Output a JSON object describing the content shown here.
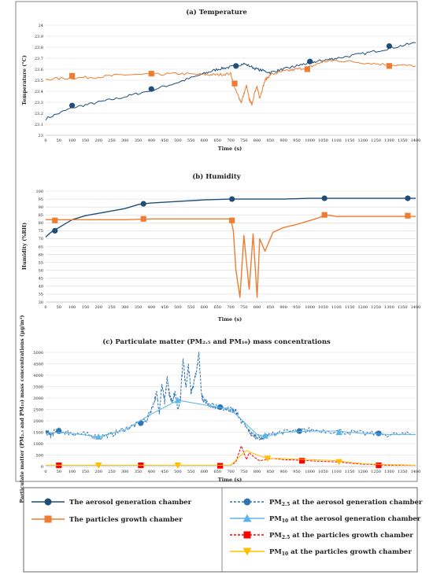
{
  "chart_data": [
    {
      "type": "line",
      "title": "(a) Temperature",
      "xlabel": "Time (s)",
      "ylabel": "Temperature (°C)",
      "xlim": [
        0,
        1400
      ],
      "ylim": [
        23,
        24
      ],
      "xticks": [
        0,
        50,
        100,
        150,
        200,
        250,
        300,
        350,
        400,
        450,
        500,
        550,
        600,
        650,
        700,
        750,
        800,
        850,
        900,
        950,
        1000,
        1050,
        1100,
        1150,
        1200,
        1250,
        1300,
        1350,
        1400
      ],
      "yticks": [
        23,
        23.1,
        23.2,
        23.3,
        23.4,
        23.5,
        23.6,
        23.7,
        23.8,
        23.9,
        24
      ],
      "ytick_labels": [
        "23",
        "23.1",
        "23.2",
        "23.3",
        "23.4",
        "23.5",
        "23.6",
        "23.7",
        "23.8",
        "23.9",
        "24"
      ],
      "grid": "horizontal",
      "series": [
        {
          "name": "The aerosol generation chamber",
          "color": "#1f4e79",
          "marker": "circle",
          "x": [
            0,
            100,
            200,
            300,
            400,
            500,
            600,
            650,
            700,
            750,
            800,
            850,
            900,
            950,
            1000,
            1050,
            1100,
            1200,
            1300,
            1400
          ],
          "y": [
            23.15,
            23.25,
            23.3,
            23.35,
            23.41,
            23.48,
            23.56,
            23.6,
            23.62,
            23.65,
            23.6,
            23.57,
            23.6,
            23.63,
            23.66,
            23.68,
            23.7,
            23.74,
            23.79,
            23.84
          ],
          "marker_x": [
            100,
            400,
            720,
            1000,
            1300
          ],
          "marker_y": [
            23.27,
            23.42,
            23.63,
            23.67,
            23.81
          ]
        },
        {
          "name": "The particles growth chamber",
          "color": "#ed7d31",
          "marker": "square",
          "x": [
            0,
            100,
            200,
            300,
            400,
            500,
            600,
            650,
            700,
            720,
            740,
            760,
            770,
            780,
            790,
            800,
            810,
            830,
            850,
            900,
            950,
            1000,
            1050,
            1100,
            1200,
            1300,
            1400
          ],
          "y": [
            23.51,
            23.52,
            23.53,
            23.55,
            23.55,
            23.56,
            23.55,
            23.55,
            23.56,
            23.4,
            23.3,
            23.45,
            23.33,
            23.28,
            23.38,
            23.44,
            23.34,
            23.5,
            23.55,
            23.58,
            23.6,
            23.62,
            23.67,
            23.68,
            23.66,
            23.64,
            23.63
          ],
          "marker_x": [
            100,
            400,
            715,
            990,
            1300
          ],
          "marker_y": [
            23.54,
            23.56,
            23.47,
            23.6,
            23.63
          ]
        }
      ]
    },
    {
      "type": "line",
      "title": "(b) Humidity",
      "xlabel": "Time (s)",
      "ylabel": "Humidity (%RH)",
      "xlim": [
        0,
        1400
      ],
      "ylim": [
        30,
        100
      ],
      "xticks": [
        0,
        50,
        100,
        150,
        200,
        250,
        300,
        350,
        400,
        450,
        500,
        550,
        600,
        650,
        700,
        750,
        800,
        850,
        900,
        950,
        1000,
        1050,
        1100,
        1150,
        1200,
        1250,
        1300,
        1350,
        1400
      ],
      "yticks": [
        30,
        35,
        40,
        45,
        50,
        55,
        60,
        65,
        70,
        75,
        80,
        85,
        90,
        95,
        100
      ],
      "ytick_labels": [
        "30",
        "35",
        "40",
        "45",
        "50",
        "55",
        "60",
        "65",
        "70",
        "75",
        "80",
        "85",
        "90",
        "95",
        "100"
      ],
      "grid": "horizontal",
      "series": [
        {
          "name": "The aerosol generation chamber",
          "color": "#1f4e79",
          "marker": "circle",
          "x": [
            0,
            20,
            40,
            70,
            100,
            150,
            200,
            250,
            300,
            350,
            370,
            400,
            500,
            600,
            700,
            800,
            900,
            1000,
            1100,
            1200,
            1300,
            1400
          ],
          "y": [
            71,
            74,
            76,
            79,
            82,
            84.5,
            86,
            87.5,
            89,
            91.5,
            92,
            92.5,
            93.5,
            94.5,
            95,
            95,
            95,
            95.5,
            95.5,
            95.5,
            95.5,
            95.5
          ],
          "marker_x": [
            35,
            370,
            705,
            1055,
            1370
          ],
          "marker_y": [
            75,
            92,
            95,
            95.5,
            95.5
          ]
        },
        {
          "name": "The particles growth chamber",
          "color": "#ed7d31",
          "marker": "square",
          "x": [
            0,
            40,
            100,
            200,
            300,
            400,
            500,
            600,
            700,
            710,
            720,
            735,
            750,
            760,
            770,
            785,
            800,
            810,
            830,
            860,
            900,
            950,
            990,
            1030,
            1060,
            1100,
            1200,
            1300,
            1400
          ],
          "y": [
            82,
            82,
            82,
            82,
            82,
            82.5,
            82.5,
            82.5,
            82.5,
            75,
            50,
            33,
            72,
            55,
            38,
            73,
            33,
            70,
            62,
            74,
            77,
            79,
            81,
            83,
            85,
            84,
            84,
            84,
            84
          ],
          "marker_x": [
            35,
            370,
            705,
            1055,
            1370
          ],
          "marker_y": [
            81.5,
            82.5,
            81.5,
            85,
            84.5
          ]
        }
      ]
    },
    {
      "type": "line",
      "title": "(c) Particulate matter  (PM₂.₅ and PM₁₀) mass concentrations",
      "xlabel": "Time (s)",
      "ylabel": "Particulate matter  (PM₂.₅ and PM₁₀) mass concentrations (μg/m³)",
      "xlim": [
        0,
        1400
      ],
      "ylim": [
        0,
        5000
      ],
      "xticks": [
        0,
        50,
        100,
        150,
        200,
        250,
        300,
        350,
        400,
        450,
        500,
        550,
        600,
        650,
        700,
        750,
        800,
        850,
        900,
        950,
        1000,
        1050,
        1100,
        1150,
        1200,
        1250,
        1300,
        1350,
        1400
      ],
      "yticks": [
        0,
        500,
        1000,
        1500,
        2000,
        2500,
        3000,
        3500,
        4000,
        4500,
        5000
      ],
      "ytick_labels": [
        "0",
        "500",
        "1000",
        "1500",
        "2000",
        "2500",
        "3000",
        "3500",
        "4000",
        "4500",
        "5000"
      ],
      "grid": "horizontal",
      "series": [
        {
          "name": "PM₂.₅ at the aerosol generation chamber",
          "color": "#2e75b6",
          "dash": "dashed",
          "marker": "circle",
          "x": [
            0,
            10,
            20,
            40,
            60,
            100,
            150,
            200,
            250,
            300,
            350,
            380,
            400,
            420,
            430,
            440,
            450,
            460,
            470,
            480,
            490,
            500,
            510,
            520,
            530,
            540,
            550,
            560,
            570,
            580,
            590,
            600,
            620,
            650,
            680,
            700,
            720,
            740,
            760,
            780,
            800,
            820,
            840,
            880,
            950,
            1000,
            1100,
            1200,
            1300,
            1400
          ],
          "y": [
            1450,
            1500,
            1350,
            1600,
            1550,
            1450,
            1400,
            1300,
            1400,
            1650,
            1850,
            2000,
            2500,
            3200,
            2400,
            3600,
            2800,
            3900,
            3000,
            2900,
            3300,
            2500,
            3000,
            4800,
            3400,
            4400,
            3300,
            3600,
            4200,
            4900,
            3100,
            2900,
            2700,
            2600,
            2550,
            2500,
            2400,
            2000,
            1700,
            1400,
            1300,
            1250,
            1350,
            1500,
            1550,
            1600,
            1550,
            1450,
            1400,
            1400
          ],
          "marker_x": [
            50,
            360,
            660,
            960,
            1260
          ],
          "marker_y": [
            1550,
            1900,
            2600,
            1550,
            1450
          ]
        },
        {
          "name": "PM₁₀ at the aerosol generation chamber",
          "color": "#5bb5e8",
          "dash": "solid",
          "marker": "triangle",
          "x": [
            0,
            50,
            100,
            200,
            300,
            400,
            500,
            600,
            700,
            800,
            830,
            900,
            1000,
            1100,
            1200,
            1300,
            1400
          ],
          "y": [
            1450,
            1500,
            1450,
            1300,
            1600,
            2300,
            2900,
            2700,
            2500,
            1400,
            1300,
            1500,
            1550,
            1550,
            1450,
            1400,
            1400
          ],
          "marker_x": [
            200,
            500,
            830,
            1110
          ],
          "marker_y": [
            1300,
            2900,
            1350,
            1500
          ]
        },
        {
          "name": "PM₂.₅ at the particles growth chamber",
          "color": "#ff0000",
          "dash": "dashed",
          "marker": "square",
          "x": [
            0,
            100,
            200,
            300,
            400,
            500,
            600,
            700,
            720,
            740,
            750,
            760,
            770,
            790,
            810,
            830,
            860,
            900,
            950,
            1000,
            1050,
            1100,
            1200,
            1300,
            1400
          ],
          "y": [
            50,
            50,
            50,
            50,
            50,
            50,
            50,
            50,
            200,
            900,
            600,
            300,
            600,
            400,
            250,
            300,
            350,
            300,
            280,
            250,
            220,
            200,
            100,
            50,
            50
          ],
          "marker_x": [
            50,
            360,
            660,
            970,
            1260
          ],
          "marker_y": [
            50,
            50,
            30,
            250,
            50
          ]
        },
        {
          "name": "PM₁₀ at the particles growth chamber",
          "color": "#ffc000",
          "dash": "solid",
          "marker": "triangle-down",
          "x": [
            0,
            100,
            200,
            300,
            400,
            500,
            600,
            700,
            740,
            760,
            800,
            840,
            900,
            950,
            1000,
            1050,
            1100,
            1150,
            1200,
            1300,
            1400
          ],
          "y": [
            50,
            50,
            50,
            50,
            50,
            50,
            50,
            50,
            500,
            700,
            500,
            350,
            350,
            320,
            300,
            280,
            250,
            180,
            120,
            80,
            50
          ],
          "marker_x": [
            200,
            500,
            840,
            1110
          ],
          "marker_y": [
            50,
            50,
            350,
            200
          ]
        }
      ]
    }
  ],
  "legend": {
    "left": [
      {
        "label": "The aerosol generation chamber",
        "color": "#1f4e79",
        "marker": "circle",
        "dash": "solid"
      },
      {
        "label": "The particles growth chamber",
        "color": "#ed7d31",
        "marker": "square",
        "dash": "solid"
      }
    ],
    "right": [
      {
        "label_pre": "PM",
        "label_sub": "2.5",
        "label_post": " at the aerosol generation chamber",
        "color": "#2e75b6",
        "marker": "circle",
        "dash": "dashed"
      },
      {
        "label_pre": "PM",
        "label_sub": "10",
        "label_post": " at the aerosol generation chamber",
        "color": "#5bb5e8",
        "marker": "triangle",
        "dash": "solid"
      },
      {
        "label_pre": "PM",
        "label_sub": "2.5",
        "label_post": " at the particles growth chamber",
        "color": "#ff0000",
        "marker": "square",
        "dash": "dashed"
      },
      {
        "label_pre": "PM",
        "label_sub": "10",
        "label_post": " at the particles growth chamber",
        "color": "#ffc000",
        "marker": "triangle-down",
        "dash": "solid"
      }
    ]
  }
}
